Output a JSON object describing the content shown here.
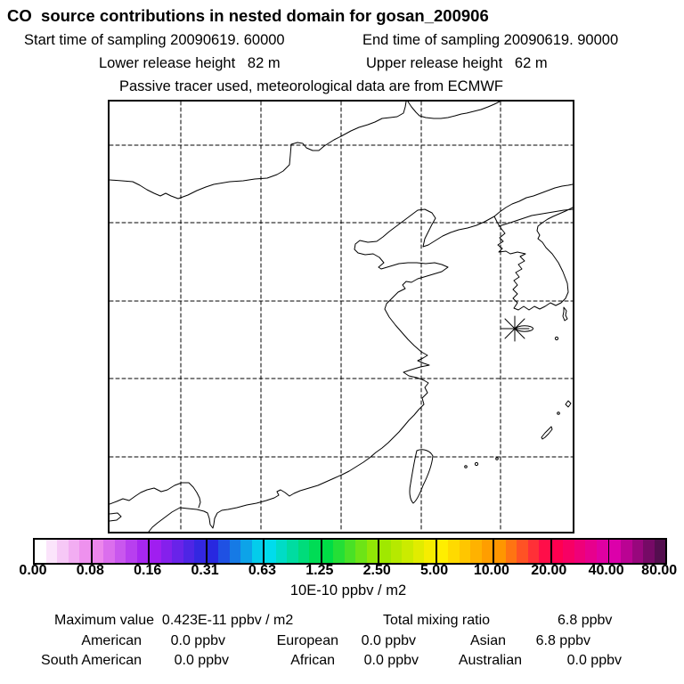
{
  "header": {
    "title": "CO  source contributions in nested domain for gosan_200906",
    "sampling_start": "Start time of sampling 20090619. 60000",
    "sampling_end": "End time of sampling 20090619. 90000",
    "lower_release": "Lower release height   82 m",
    "upper_release": "Upper release height   62 m",
    "tracer_info": "Passive tracer used, meteorological data are from ECMWF"
  },
  "map": {
    "station_marker": "gosan-station-marker"
  },
  "colorbar": {
    "tick_labels": [
      "0.00",
      "0.08",
      "0.16",
      "0.31",
      "0.63",
      "1.25",
      "2.50",
      "5.00",
      "10.00",
      "20.00",
      "40.00",
      "80.00"
    ],
    "unit_label": "10E-10 ppbv / m2",
    "segment_stop_colors": [
      "#ffffff",
      "#ec86ec",
      "#a01ef0",
      "#2828e0",
      "#00dcec",
      "#00dc46",
      "#a0e800",
      "#ffee00",
      "#ff9600",
      "#ff0050",
      "#dc00aa",
      "#460f46"
    ],
    "cells_per_segment": 5
  },
  "stats": {
    "maximum": "Maximum value  0.423E-11 ppbv / m2",
    "total_label": "Total mixing ratio",
    "total_value": "6.8 ppbv",
    "regions": [
      {
        "label": "American",
        "value": "0.0 ppbv"
      },
      {
        "label": "European",
        "value": "0.0 ppbv"
      },
      {
        "label": "Asian",
        "value": "6.8 ppbv"
      },
      {
        "label": "South American",
        "value": "0.0 ppbv"
      },
      {
        "label": "African",
        "value": "0.0 ppbv"
      },
      {
        "label": "Australian",
        "value": "0.0 ppbv"
      }
    ]
  },
  "chart_data": {
    "type": "map",
    "title": "CO source contributions in nested domain for gosan_200906",
    "station": {
      "name": "gosan",
      "marker": "asterisk"
    },
    "colorbar_scale": [
      0.0,
      0.08,
      0.16,
      0.31,
      0.63,
      1.25,
      2.5,
      5.0,
      10.0,
      20.0,
      40.0,
      80.0
    ],
    "colorbar_unit": "10E-10 ppbv / m2",
    "maximum_value": "0.423E-11 ppbv / m2",
    "total_mixing_ratio_ppbv": 6.8,
    "region_contributions_ppbv": {
      "American": 0.0,
      "European": 0.0,
      "Asian": 6.8,
      "South American": 0.0,
      "African": 0.0,
      "Australian": 0.0
    },
    "grid": "dashed lat/lon lines",
    "field": "no visible concentration field (all below lowest bin)"
  }
}
